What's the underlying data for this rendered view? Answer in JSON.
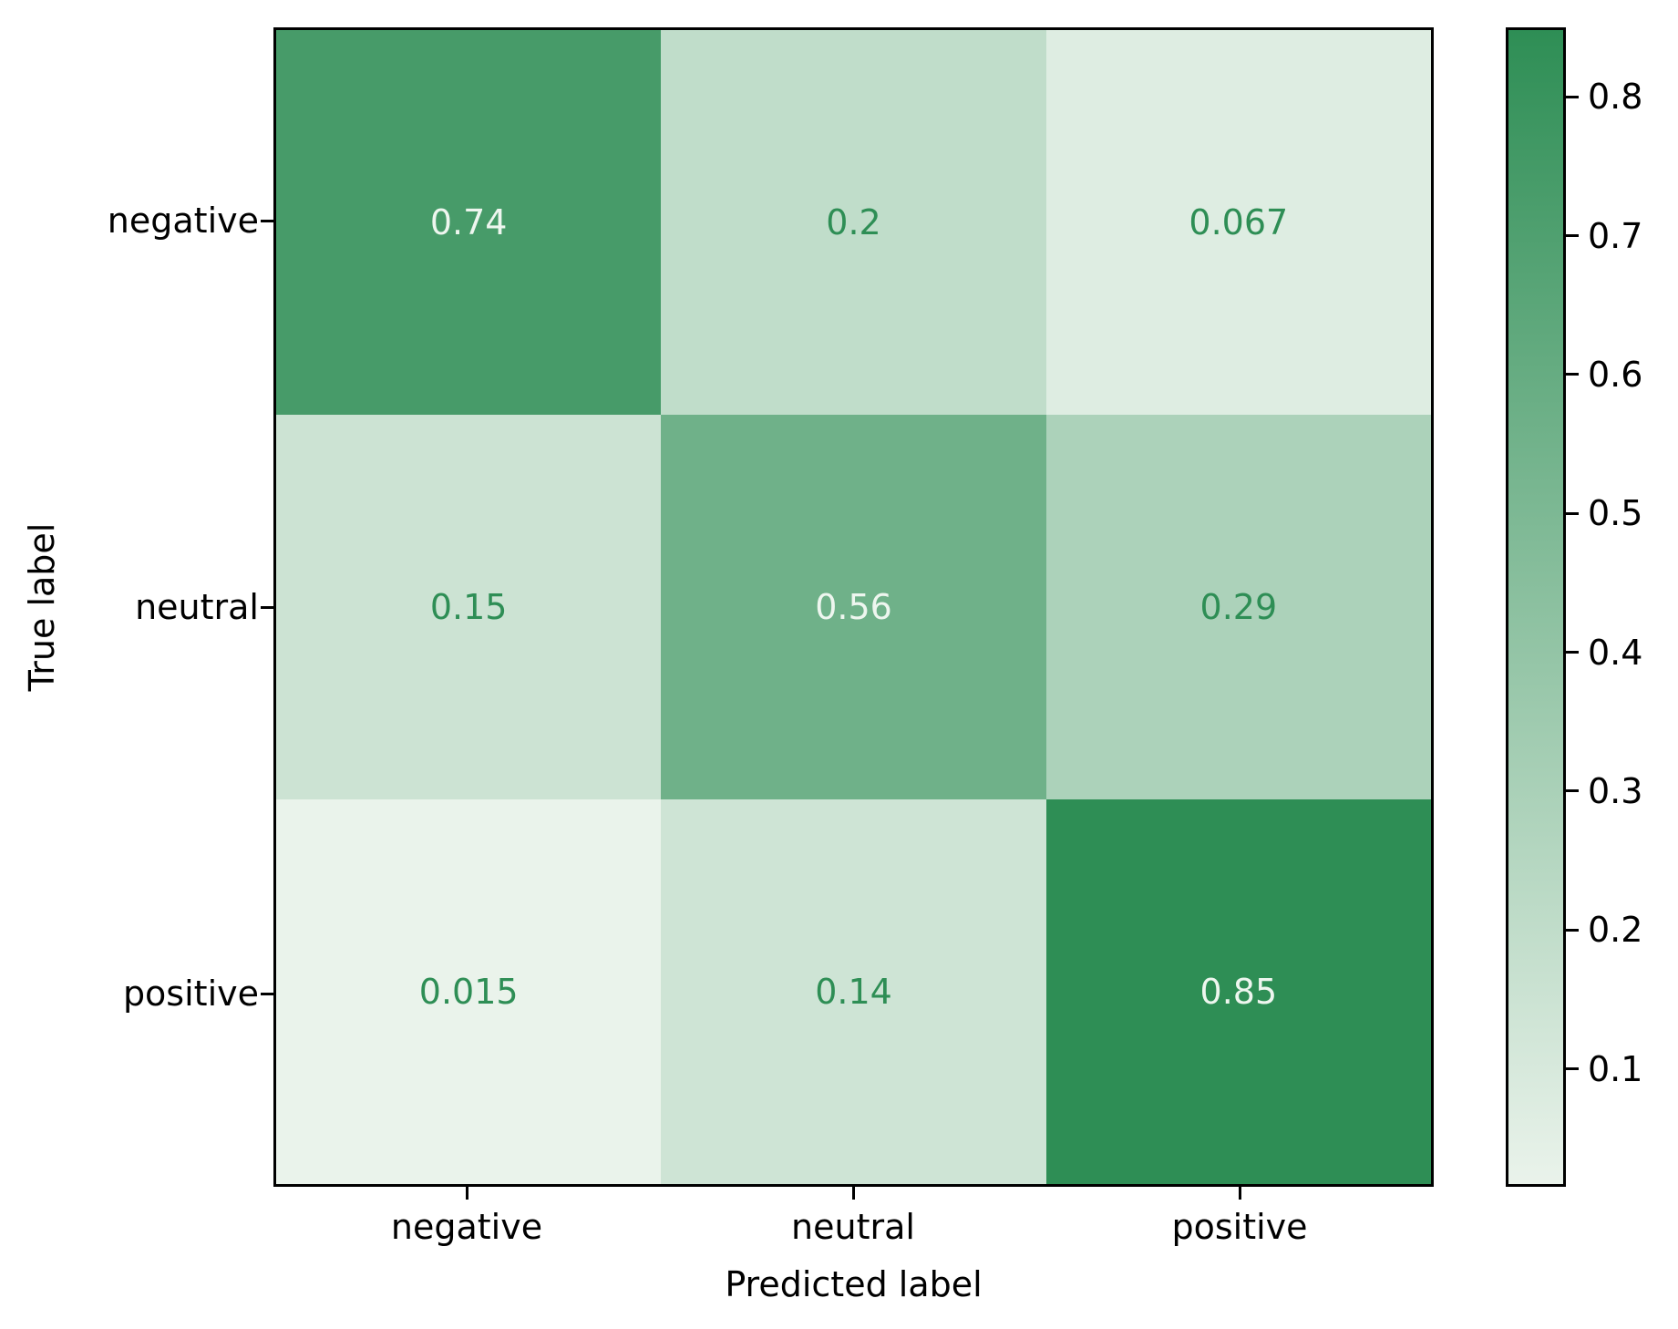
{
  "chart_data": {
    "type": "heatmap",
    "title": "",
    "xlabel": "Predicted label",
    "ylabel": "True label",
    "x_categories": [
      "negative",
      "neutral",
      "positive"
    ],
    "y_categories": [
      "negative",
      "neutral",
      "positive"
    ],
    "rows": [
      [
        0.74,
        0.2,
        0.067
      ],
      [
        0.15,
        0.56,
        0.29
      ],
      [
        0.015,
        0.14,
        0.85
      ]
    ],
    "cell_labels": [
      [
        "0.74",
        "0.2",
        "0.067"
      ],
      [
        "0.15",
        "0.56",
        "0.29"
      ],
      [
        "0.015",
        "0.14",
        "0.85"
      ]
    ],
    "vmin": 0.015,
    "vmax": 0.85,
    "colorbar_tick_values": [
      0.8,
      0.7,
      0.6,
      0.5,
      0.4,
      0.3,
      0.2,
      0.1
    ],
    "colorbar_tick_labels": [
      "0.8",
      "0.7",
      "0.6",
      "0.5",
      "0.4",
      "0.3",
      "0.2",
      "0.1"
    ],
    "colormap": "Greens",
    "legend_position": "right-colorbar",
    "grid": false
  },
  "colors": {
    "cmap_min": "#eaf3eb",
    "cmap_max": "#2e8e55",
    "text_on_dark": "#eef6ef",
    "text_on_light": "#2e8e55",
    "spine": "#000000",
    "background": "#ffffff"
  }
}
